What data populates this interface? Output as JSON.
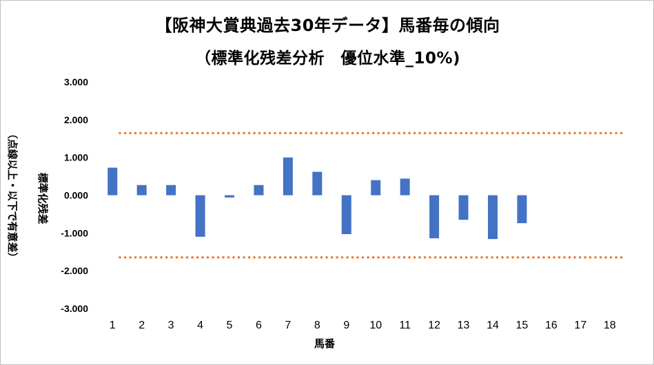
{
  "chart_data": {
    "type": "bar",
    "title": "【阪神大賞典過去30年データ】馬番毎の傾向",
    "subtitle": "（標準化残差分析　優位水準_10%)",
    "xlabel": "馬番",
    "ylabel": "標準化残差",
    "ylabel_note": "（点線以上・以下で有意差）",
    "categories": [
      "1",
      "2",
      "3",
      "4",
      "5",
      "6",
      "7",
      "8",
      "9",
      "10",
      "11",
      "12",
      "13",
      "14",
      "15",
      "16",
      "17",
      "18"
    ],
    "values": [
      0.73,
      0.27,
      0.27,
      -1.1,
      -0.06,
      0.27,
      1.0,
      0.62,
      -1.03,
      0.4,
      0.44,
      -1.14,
      -0.65,
      -1.16,
      -0.74,
      null,
      null,
      null
    ],
    "ylim": [
      -3,
      3
    ],
    "yticks": [
      "3.000",
      "2.000",
      "1.000",
      "0.000",
      "-1.000",
      "-2.000",
      "-3.000"
    ],
    "ytick_values": [
      3,
      2,
      1,
      0,
      -1,
      -2,
      -3
    ],
    "threshold_lines": [
      1.645,
      -1.645
    ],
    "grid": false,
    "legend": "none",
    "colors": {
      "bar": "#4472c4",
      "threshold": "#ed7d31",
      "text": "#000000"
    }
  }
}
